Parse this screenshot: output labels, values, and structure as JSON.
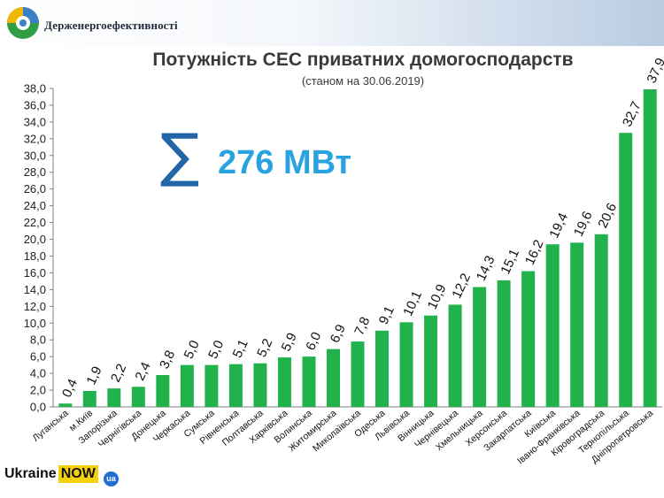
{
  "header": {
    "org_name": "Держенергоефективності"
  },
  "summary": {
    "sigma_symbol": "∑",
    "total_label": "276 МВт"
  },
  "brand": {
    "ukraine_text": "Ukraine",
    "now_text": "NOW",
    "ua_text": "ua"
  },
  "colors": {
    "bar": "#22b24c",
    "axis": "#7f7f7f",
    "sigma": "#2266a8",
    "total": "#29a3e0"
  },
  "chart_data": {
    "type": "bar",
    "title": "Потужність СЕС приватних домогосподарств",
    "subtitle": "(станом на 30.06.2019)",
    "xlabel": "",
    "ylabel": "",
    "ylim": [
      0,
      38
    ],
    "y_ticks": [
      "0,0",
      "2,0",
      "4,0",
      "6,0",
      "8,0",
      "10,0",
      "12,0",
      "14,0",
      "16,0",
      "18,0",
      "20,0",
      "22,0",
      "24,0",
      "26,0",
      "28,0",
      "30,0",
      "32,0",
      "34,0",
      "36,0",
      "38,0"
    ],
    "grid": false,
    "categories": [
      "Луганська",
      "м.Київ",
      "Запорізька",
      "Чернігівська",
      "Донецька",
      "Черкаська",
      "Сумська",
      "Рівненська",
      "Полтавська",
      "Харківська",
      "Волинська",
      "Житомирська",
      "Миколаївська",
      "Одеська",
      "Львівська",
      "Вінницька",
      "Чернівецька",
      "Хмельницька",
      "Херсонська",
      "Закарпатська",
      "Київська",
      "Івано-Франківська",
      "Кіровоградська",
      "Тернопільська",
      "Дніпропетровська"
    ],
    "values": [
      0.4,
      1.9,
      2.2,
      2.4,
      3.8,
      5.0,
      5.0,
      5.1,
      5.2,
      5.9,
      6.0,
      6.9,
      7.8,
      9.1,
      10.1,
      10.9,
      12.2,
      14.3,
      15.1,
      16.2,
      19.4,
      19.6,
      20.6,
      32.7,
      37.9
    ],
    "value_labels": [
      "0,4",
      "1,9",
      "2,2",
      "2,4",
      "3,8",
      "5,0",
      "5,0",
      "5,1",
      "5,2",
      "5,9",
      "6,0",
      "6,9",
      "7,8",
      "9,1",
      "10,1",
      "10,9",
      "12,2",
      "14,3",
      "15,1",
      "16,2",
      "19,4",
      "19,6",
      "20,6",
      "32,7",
      "37,9"
    ]
  }
}
